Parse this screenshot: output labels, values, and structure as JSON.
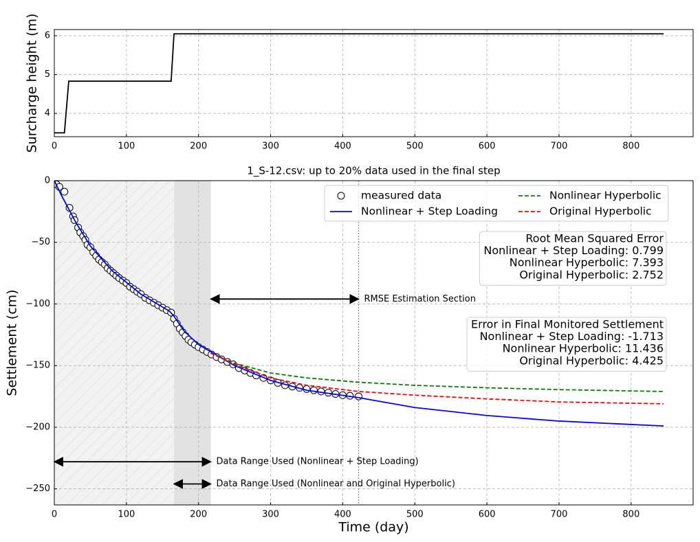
{
  "chart_data": [
    {
      "type": "line",
      "y_label": "Surcharge height (m)",
      "xlim": [
        0,
        886
      ],
      "ylim": [
        3.4,
        6.16
      ],
      "xticks": [
        0,
        100,
        200,
        300,
        400,
        500,
        600,
        700,
        800
      ],
      "yticks": [
        4,
        5,
        6
      ],
      "grid": true,
      "series": [
        {
          "color": "#000000",
          "style": "solid",
          "x": [
            0,
            14,
            20,
            162,
            166,
            845
          ],
          "values": [
            3.5,
            3.5,
            4.83,
            4.83,
            6.05,
            6.05
          ]
        }
      ]
    },
    {
      "type": "line",
      "title": "1_S-12.csv: up to 20% data used in the final step",
      "x_label": "Time (day)",
      "y_label": "Settlement (cm)",
      "xlim": [
        0,
        886
      ],
      "ylim": [
        -263,
        0
      ],
      "xticks": [
        0,
        100,
        200,
        300,
        400,
        500,
        600,
        700,
        800
      ],
      "yticks": [
        0,
        {
          "value": -50,
          "label": "−50"
        },
        {
          "value": -100,
          "label": "−100"
        },
        {
          "value": -150,
          "label": "−150"
        },
        {
          "value": -200,
          "label": "−200"
        },
        {
          "value": -250,
          "label": "−250"
        }
      ],
      "grid": true,
      "legend": "upper right",
      "shaded_ranges": [
        [
          0,
          166
        ],
        [
          166,
          217
        ]
      ],
      "vline": 422,
      "series": [
        {
          "name": "measured data",
          "color": "#000000",
          "style": "markers",
          "x": [
            3,
            7,
            14,
            21,
            26,
            28,
            33,
            36,
            40,
            43,
            46,
            50,
            54,
            58,
            62,
            66,
            70,
            74,
            78,
            82,
            86,
            90,
            95,
            100,
            105,
            110,
            115,
            120,
            126,
            132,
            138,
            144,
            150,
            156,
            162,
            166,
            170,
            174,
            178,
            182,
            186,
            190,
            195,
            200,
            206,
            212,
            218,
            225,
            232,
            240,
            248,
            256,
            264,
            272,
            280,
            290,
            300,
            310,
            320,
            330,
            340,
            350,
            360,
            370,
            380,
            390,
            400,
            410,
            422
          ],
          "values": [
            -3,
            -5,
            -9,
            -22,
            -29,
            -32,
            -38,
            -42,
            -45,
            -48,
            -52,
            -54,
            -58,
            -61,
            -64,
            -66,
            -68,
            -71,
            -73,
            -75,
            -77,
            -79,
            -81,
            -83,
            -86,
            -88,
            -90,
            -92,
            -95,
            -97,
            -99,
            -101,
            -103,
            -105,
            -107,
            -112,
            -116,
            -120,
            -123,
            -126,
            -129,
            -131,
            -133,
            -135,
            -137,
            -139,
            -141,
            -143,
            -145,
            -147,
            -149,
            -152,
            -154,
            -156,
            -158,
            -160,
            -162,
            -164,
            -166,
            -167,
            -168,
            -169,
            -170,
            -171,
            -172,
            -173,
            -174,
            -174.5,
            -175
          ]
        },
        {
          "name": "Nonlinear + Step Loading",
          "color": "#0000ff",
          "style": "solid",
          "x": [
            0,
            10,
            20,
            30,
            50,
            80,
            120,
            160,
            166,
            180,
            200,
            250,
            300,
            350,
            422,
            500,
            600,
            700,
            845
          ],
          "values": [
            0,
            -12,
            -23,
            -34,
            -53,
            -73,
            -92,
            -106,
            -110,
            -122,
            -133,
            -150,
            -162,
            -170,
            -176,
            -184,
            -190.5,
            -195,
            -199
          ]
        },
        {
          "name": "Nonlinear Hyperbolic",
          "color": "#008000",
          "style": "dashed",
          "x": [
            217,
            250,
            300,
            350,
            422,
            500,
            600,
            700,
            845
          ],
          "values": [
            -140,
            -148,
            -156,
            -160,
            -163.5,
            -166,
            -168,
            -169.5,
            -171
          ]
        },
        {
          "name": "Original Hyperbolic",
          "color": "#ff0000",
          "style": "dashed",
          "x": [
            217,
            250,
            300,
            350,
            422,
            500,
            600,
            700,
            845
          ],
          "values": [
            -140,
            -149,
            -160,
            -166,
            -171,
            -174,
            -177,
            -179.5,
            -181
          ]
        }
      ],
      "arrows": [
        {
          "x": [
            217,
            422
          ],
          "y": -96,
          "text": "RMSE Estimation Section"
        },
        {
          "x": [
            0,
            217
          ],
          "y": -228,
          "text": "Data Range Used (Nonlinear + Step Loading)"
        },
        {
          "x": [
            166,
            217
          ],
          "y": -246,
          "text": "Data Range Used (Nonlinear and Original Hyperbolic)"
        }
      ],
      "text_boxes": [
        {
          "color": "#ff0000",
          "lines": [
            "Root Mean Squared Error",
            "Nonlinear + Step Loading: 0.799",
            "Nonlinear Hyperbolic: 7.393",
            "Original Hyperbolic: 2.752"
          ]
        },
        {
          "color": "#ff0000",
          "lines": [
            "Error in Final Monitored Settlement",
            "Nonlinear + Step Loading: -1.713",
            "Nonlinear Hyperbolic: 11.436",
            "Original Hyperbolic: 4.425"
          ]
        }
      ]
    }
  ]
}
